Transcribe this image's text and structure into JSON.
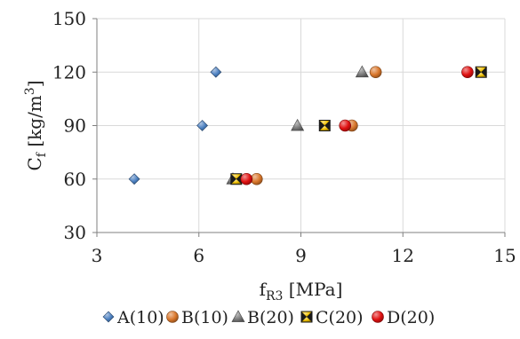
{
  "chart_data": {
    "type": "scatter",
    "xlabel": {
      "main": "f",
      "sub": "R3",
      "rest": " [MPa]"
    },
    "ylabel": {
      "main": "C",
      "sub": "f",
      "rest": " [kg/m",
      "sup": "3",
      "end": "]"
    },
    "xlim": [
      3,
      15
    ],
    "ylim": [
      30,
      150
    ],
    "xticks": [
      "3",
      "6",
      "9",
      "12",
      "15"
    ],
    "yticks": [
      "30",
      "60",
      "90",
      "120",
      "150"
    ],
    "grid": true,
    "legend_position": "bottom",
    "series": [
      {
        "name": "A(10)",
        "marker": "diamond",
        "color": "#4a7fc0",
        "points": [
          [
            4.1,
            60
          ],
          [
            6.1,
            90
          ],
          [
            6.5,
            120
          ]
        ]
      },
      {
        "name": "B(10)",
        "marker": "circle",
        "color": "#d9762a",
        "points": [
          [
            7.7,
            60
          ],
          [
            10.5,
            90
          ],
          [
            11.2,
            120
          ]
        ]
      },
      {
        "name": "B(20)",
        "marker": "triangle",
        "color": "#808080",
        "points": [
          [
            7.0,
            60
          ],
          [
            8.9,
            90
          ],
          [
            10.8,
            120
          ]
        ]
      },
      {
        "name": "C(20)",
        "marker": "hourglass",
        "color": "#f0c000",
        "points": [
          [
            7.1,
            60
          ],
          [
            9.7,
            90
          ],
          [
            14.3,
            120
          ]
        ]
      },
      {
        "name": "D(20)",
        "marker": "circle",
        "color": "#e01010",
        "points": [
          [
            7.4,
            60
          ],
          [
            10.3,
            90
          ],
          [
            13.9,
            120
          ]
        ]
      }
    ]
  }
}
